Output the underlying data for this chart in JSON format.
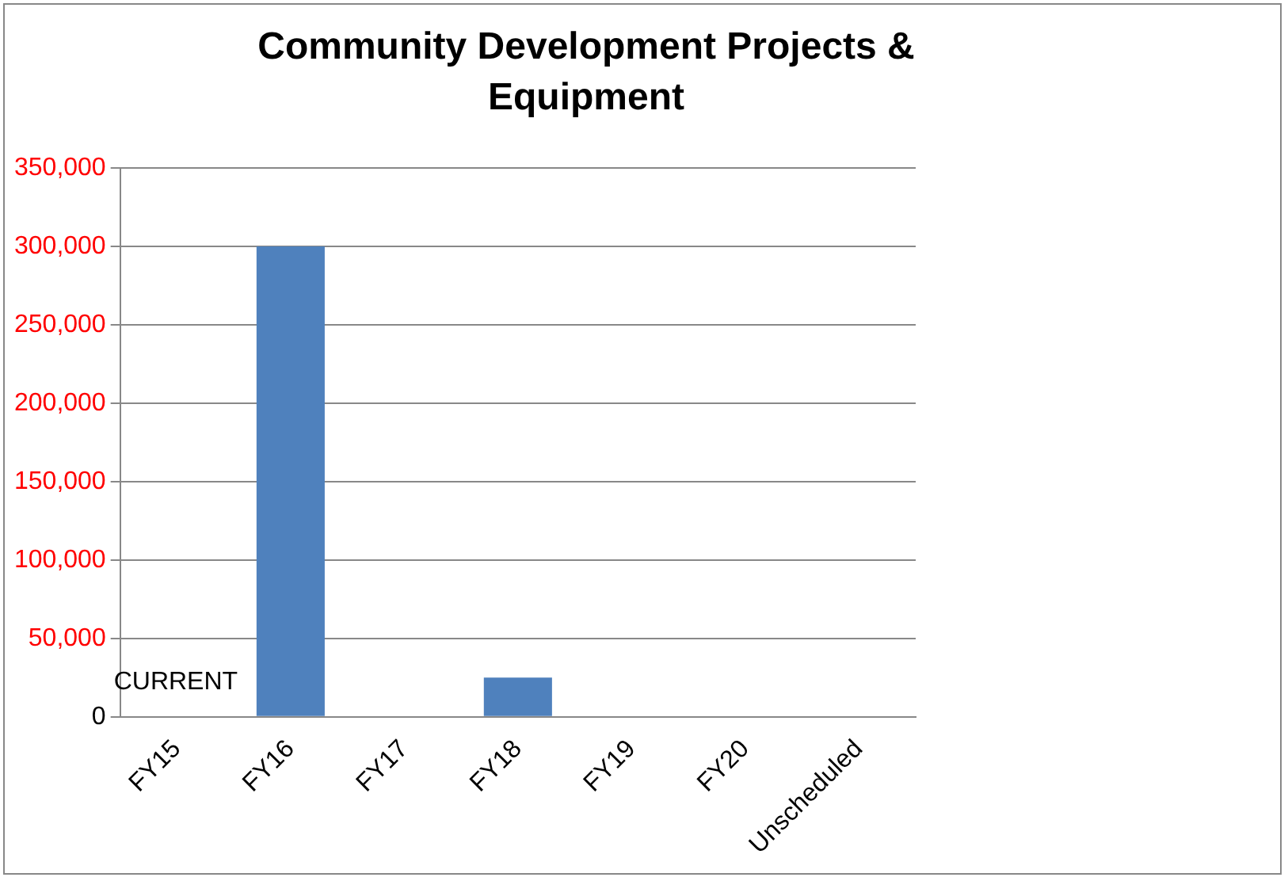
{
  "chart_data": {
    "type": "bar",
    "title": "Community Development Projects & Equipment",
    "categories": [
      "FY15",
      "FY16",
      "FY17",
      "FY18",
      "FY19",
      "FY20",
      "Unscheduled"
    ],
    "values": [
      0,
      300000,
      0,
      25000,
      0,
      0,
      0
    ],
    "color": "#4f81bd",
    "ylim": [
      0,
      350000
    ],
    "yticks": [
      0,
      {
        "value": 50000,
        "label": "50,000"
      },
      {
        "value": 100000,
        "label": "100,000"
      },
      {
        "value": 150000,
        "label": "150,000"
      },
      {
        "value": 200000,
        "label": "200,000"
      },
      {
        "value": 250000,
        "label": "250,000"
      },
      {
        "value": 300000,
        "label": "300,000"
      },
      {
        "value": 350000,
        "label": "350,000"
      }
    ],
    "grid": "y",
    "legend": false,
    "annotations": [
      "CURRENT"
    ]
  }
}
